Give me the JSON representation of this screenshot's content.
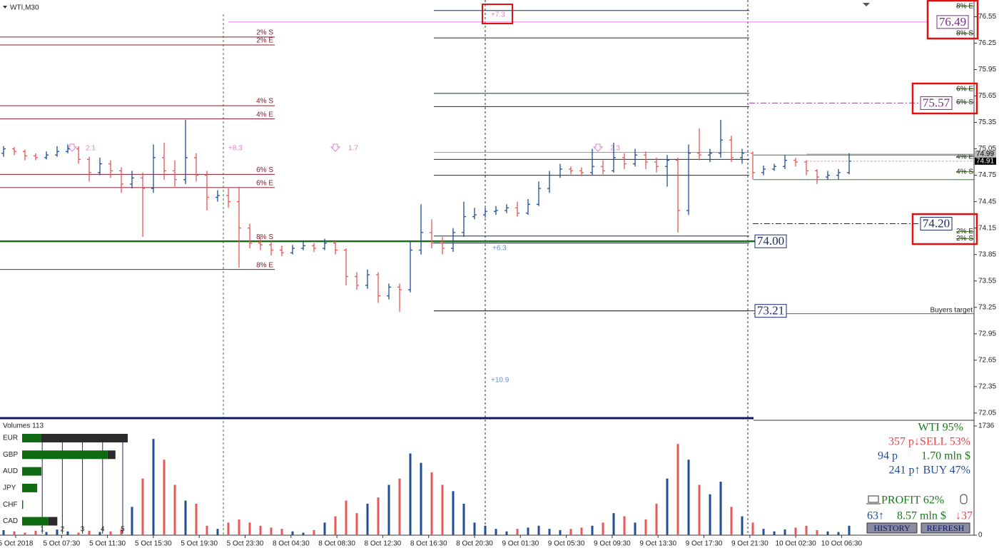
{
  "chart_data": {
    "type": "candlestick",
    "title": "WTI,M30",
    "ylim": [
      72.0,
      76.74
    ],
    "yticks": [
      76.55,
      76.25,
      75.95,
      75.65,
      75.35,
      75.05,
      74.75,
      74.45,
      74.15,
      73.85,
      73.55,
      73.25,
      72.95,
      72.65,
      72.35,
      72.05
    ],
    "time_labels": [
      "5 Oct 2018",
      "5 Oct 07:30",
      "5 Oct 11:30",
      "5 Oct 15:30",
      "5 Oct 19:30",
      "5 Oct 23:30",
      "8 Oct 04:30",
      "8 Oct 08:30",
      "8 Oct 12:30",
      "8 Oct 16:30",
      "8 Oct 20:30",
      "9 Oct 01:30",
      "9 Oct 05:30",
      "9 Oct 09:30",
      "9 Oct 13:30",
      "9 Oct 17:30",
      "9 Oct 21:30",
      "10 Oct 02:30",
      "10 Oct 06:30"
    ],
    "up_color": "#1f4e96",
    "down_color": "#e8575a",
    "open": [
      75.0,
      75.05,
      75.02,
      74.97,
      74.95,
      74.98,
      75.02,
      75.05,
      74.93,
      74.78,
      74.88,
      74.8,
      74.65,
      74.72,
      74.6,
      74.95,
      74.8,
      74.7,
      74.95,
      74.75,
      74.5,
      74.52,
      74.45,
      74.15,
      73.98,
      73.96,
      73.9,
      73.87,
      73.92,
      73.95,
      73.92,
      73.98,
      73.9,
      73.6,
      73.5,
      73.62,
      73.38,
      73.48,
      73.45,
      73.9,
      74.1,
      73.98,
      73.92,
      74.1,
      74.28,
      74.3,
      74.34,
      74.35,
      74.38,
      74.32,
      74.42,
      74.6,
      74.75,
      74.82,
      74.8,
      74.78,
      74.85,
      74.8,
      74.95,
      74.88,
      74.98,
      74.9,
      74.85,
      74.92,
      74.35,
      75.0,
      74.98,
      75.0,
      75.15,
      74.95,
      75.0,
      74.78,
      74.82,
      74.85,
      74.92,
      74.9,
      74.8,
      74.73,
      74.75,
      74.78
    ],
    "high": [
      75.08,
      75.07,
      75.04,
      75.0,
      75.02,
      75.08,
      75.1,
      75.08,
      74.96,
      74.95,
      74.92,
      74.84,
      74.8,
      74.78,
      75.1,
      75.12,
      74.92,
      75.38,
      75.0,
      74.8,
      74.58,
      74.6,
      74.62,
      74.2,
      74.05,
      74.0,
      73.95,
      73.96,
      74.0,
      73.98,
      74.03,
      74.0,
      73.92,
      73.65,
      73.68,
      73.65,
      73.52,
      73.52,
      74.0,
      74.42,
      74.25,
      74.05,
      74.15,
      74.45,
      74.38,
      74.38,
      74.4,
      74.42,
      74.45,
      74.48,
      74.68,
      74.8,
      74.88,
      74.85,
      74.84,
      75.05,
      74.92,
      75.12,
      75.0,
      75.05,
      75.02,
      74.95,
      74.98,
      74.95,
      75.1,
      75.28,
      75.05,
      75.38,
      75.2,
      75.05,
      75.02,
      74.86,
      74.88,
      74.98,
      74.95,
      74.92,
      74.82,
      74.8,
      74.82,
      75.0
    ],
    "low": [
      74.96,
      74.98,
      74.92,
      74.92,
      74.93,
      74.96,
      75.0,
      74.88,
      74.68,
      74.75,
      74.72,
      74.55,
      74.6,
      74.05,
      74.55,
      74.7,
      74.62,
      74.65,
      74.68,
      74.35,
      74.45,
      74.38,
      73.7,
      73.92,
      73.9,
      73.84,
      73.83,
      73.85,
      73.9,
      73.88,
      73.9,
      73.85,
      73.5,
      73.45,
      73.46,
      73.3,
      73.34,
      73.2,
      73.42,
      73.85,
      73.92,
      73.85,
      73.88,
      74.05,
      74.25,
      74.27,
      74.3,
      74.32,
      74.28,
      74.3,
      74.4,
      74.55,
      74.72,
      74.76,
      74.74,
      74.75,
      74.76,
      74.78,
      74.82,
      74.85,
      74.82,
      74.78,
      74.62,
      74.1,
      74.3,
      74.92,
      74.9,
      74.95,
      74.9,
      74.88,
      74.7,
      74.75,
      74.8,
      74.82,
      74.85,
      74.75,
      74.65,
      74.7,
      74.7,
      74.76
    ],
    "close": [
      75.05,
      75.02,
      74.97,
      74.95,
      74.98,
      75.02,
      75.05,
      74.93,
      74.78,
      74.88,
      74.8,
      74.65,
      74.72,
      74.6,
      74.95,
      74.8,
      74.7,
      74.95,
      74.75,
      74.5,
      74.52,
      74.45,
      74.15,
      73.98,
      73.96,
      73.9,
      73.87,
      73.92,
      73.95,
      73.92,
      73.98,
      73.9,
      73.6,
      73.5,
      73.62,
      73.38,
      73.48,
      73.45,
      73.9,
      74.1,
      73.98,
      73.92,
      74.1,
      74.28,
      74.3,
      74.34,
      74.35,
      74.38,
      74.32,
      74.42,
      74.6,
      74.75,
      74.82,
      74.8,
      74.78,
      74.85,
      74.8,
      74.95,
      74.88,
      74.98,
      74.9,
      74.85,
      74.92,
      74.35,
      75.0,
      74.98,
      75.0,
      75.15,
      74.95,
      75.0,
      74.78,
      74.82,
      74.85,
      74.92,
      74.9,
      74.8,
      74.73,
      74.75,
      74.78,
      74.91
    ],
    "volume_title": "Volumes 113",
    "volumes": [
      80,
      60,
      40,
      70,
      50,
      90,
      60,
      40,
      70,
      50,
      60,
      90,
      450,
      900,
      1530,
      1200,
      800,
      550,
      500,
      150,
      100,
      200,
      250,
      200,
      150,
      120,
      100,
      60,
      40,
      80,
      200,
      300,
      550,
      350,
      500,
      600,
      800,
      900,
      1300,
      1150,
      1000,
      800,
      700,
      500,
      200,
      150,
      100,
      60,
      100,
      120,
      150,
      100,
      80,
      100,
      120,
      150,
      200,
      350,
      300,
      200,
      250,
      500,
      900,
      1450,
      1200,
      800,
      650,
      850,
      450,
      300,
      200,
      100,
      60,
      90,
      120,
      150,
      80,
      60,
      50,
      150
    ],
    "volume_ylim": [
      0,
      1736
    ],
    "volume_ticks": [
      1736,
      0
    ],
    "left_levels": [
      {
        "label": "2% S",
        "value": 76.32
      },
      {
        "label": "2% E",
        "value": 76.23
      },
      {
        "label": "4% S",
        "value": 75.54
      },
      {
        "label": "4% E",
        "value": 75.39
      },
      {
        "label": "6% S",
        "value": 74.76
      },
      {
        "label": "6% E",
        "value": 74.61
      },
      {
        "label": "8% S",
        "value": 74.0
      },
      {
        "label": "8% E",
        "value": 73.68
      }
    ],
    "middle_levels": [
      76.62,
      76.31,
      75.68,
      75.53,
      75.01,
      74.93,
      74.75,
      74.06,
      73.98,
      73.21
    ],
    "right_levels": [
      {
        "label": "8% E",
        "value": 76.67
      },
      {
        "label": "8% S",
        "value": 76.36
      },
      {
        "label": "6% E",
        "value": 75.73
      },
      {
        "label": "6% S",
        "value": 75.58
      },
      {
        "label": "4% E",
        "value": 74.96
      },
      {
        "label": "4% S",
        "value": 74.79
      },
      {
        "label": "2% E",
        "value": 74.11
      },
      {
        "label": "2% S",
        "value": 74.03
      }
    ],
    "right_green_levels": [
      74.98,
      74.7
    ],
    "buyers_target": {
      "label": "Buyers target",
      "value": 73.21
    },
    "price_boxes": [
      {
        "value": 76.49,
        "label": "76.49"
      },
      {
        "value": 75.57,
        "label": "75.57"
      },
      {
        "value": 74.2,
        "label": "74.20"
      },
      {
        "value": 74.0,
        "label": "74.00"
      },
      {
        "value": 73.21,
        "label": "73.21"
      }
    ],
    "current_prices": [
      74.99,
      74.91
    ],
    "annotations": [
      "+7.3",
      "2.1",
      "+8.3",
      "1.7",
      "2.3",
      "+6.3",
      "+10.9"
    ]
  },
  "currency_panel": {
    "currencies": [
      "EUR",
      "GBP",
      "AUD",
      "JPY",
      "CHF",
      "CAD"
    ],
    "strong": [
      0.93,
      4.25,
      0.96,
      0.75,
      0.05,
      1.3
    ],
    "weak": [
      4.32,
      0.39,
      0,
      0,
      0,
      0.45
    ],
    "xlim": [
      0,
      5.25
    ],
    "ticks": [
      1,
      2,
      3,
      4,
      5
    ]
  },
  "info_panel": {
    "symbol": "WTI 95%",
    "sell": "357 p↓SELL 53%",
    "pips": "94 p",
    "volume": "1.70 mln $",
    "buy": "241 p↑ BUY 47%",
    "profit": "PROFIT 62%",
    "up_count": "63↑",
    "money": "8.57 mln $",
    "down_count": "↓37",
    "buttons": [
      "HISTORY",
      "REFRESH"
    ]
  }
}
